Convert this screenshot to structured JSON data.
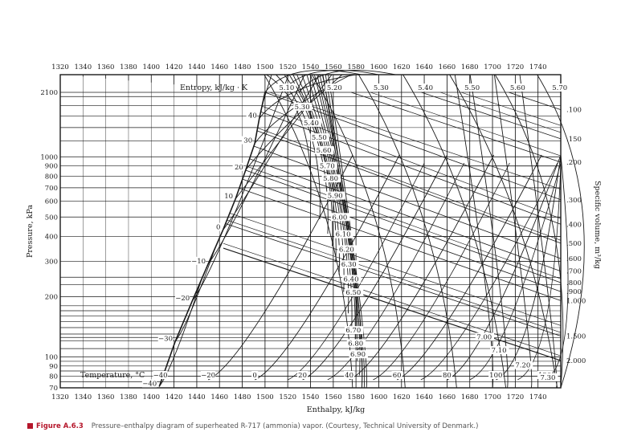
{
  "chart_data": {
    "type": "line",
    "title": "",
    "xlabel": "Enthalpy, kJ/kg",
    "ylabel": "Pressure, kPa",
    "right_axis_label": "Specific volume, m³/kg",
    "entropy_label": "Entropy, kJ/kg · K",
    "temperature_label": "Temperature, °C",
    "scale": {
      "x": "linear",
      "y": "log"
    },
    "xlim": [
      1320,
      1760
    ],
    "ylim": [
      70,
      2100
    ],
    "grid": true,
    "x_ticks": [
      "1320",
      "1340",
      "1360",
      "1380",
      "1400",
      "1420",
      "1440",
      "1460",
      "1480",
      "1500",
      "1520",
      "1540",
      "1560",
      "1580",
      "1600",
      "1620",
      "1640",
      "1660",
      "1680",
      "1700",
      "1720",
      "1740"
    ],
    "y_ticks": [
      {
        "v": 2100,
        "label": "2100"
      },
      {
        "v": 1000,
        "label": "1000"
      },
      {
        "v": 900,
        "label": "900"
      },
      {
        "v": 800,
        "label": "800"
      },
      {
        "v": 700,
        "label": "700"
      },
      {
        "v": 600,
        "label": "600"
      },
      {
        "v": 500,
        "label": "500"
      },
      {
        "v": 400,
        "label": "400"
      },
      {
        "v": 300,
        "label": "300"
      },
      {
        "v": 200,
        "label": "200"
      },
      {
        "v": 100,
        "label": "100"
      },
      {
        "v": 90,
        "label": "90"
      },
      {
        "v": 80,
        "label": "80"
      },
      {
        "v": 70,
        "label": "70"
      }
    ],
    "top_entropy_ticks": [
      {
        "h": 1512,
        "label": "5.10"
      },
      {
        "h": 1554,
        "label": "5.20"
      },
      {
        "h": 1595,
        "label": "5.30"
      },
      {
        "h": 1634,
        "label": "5.40"
      },
      {
        "h": 1675,
        "label": "5.50"
      },
      {
        "h": 1715,
        "label": "5.60"
      },
      {
        "h": 1752,
        "label": "5.70"
      }
    ],
    "bottom_temperature_ticks": [
      {
        "h": 1408,
        "label": "−40"
      },
      {
        "h": 1450,
        "label": "−20"
      },
      {
        "h": 1491,
        "label": "0"
      },
      {
        "h": 1533,
        "label": "20"
      },
      {
        "h": 1574,
        "label": "40"
      },
      {
        "h": 1616,
        "label": "60"
      },
      {
        "h": 1660,
        "label": "80"
      },
      {
        "h": 1703,
        "label": "100"
      },
      {
        "h": 1746,
        "label": "120"
      }
    ],
    "right_volume_ticks": [
      {
        "p": 1720,
        "label": ".100"
      },
      {
        "p": 1230,
        "label": ".150"
      },
      {
        "p": 940,
        "label": ".200"
      },
      {
        "p": 610,
        "label": ".300"
      },
      {
        "p": 460,
        "label": ".400"
      },
      {
        "p": 370,
        "label": ".500"
      },
      {
        "p": 310,
        "label": ".600"
      },
      {
        "p": 268,
        "label": ".700"
      },
      {
        "p": 235,
        "label": ".800"
      },
      {
        "p": 212,
        "label": ".900"
      },
      {
        "p": 191,
        "label": "1.000"
      },
      {
        "p": 127,
        "label": "1.500"
      },
      {
        "p": 96,
        "label": "2.000"
      }
    ],
    "saturation_line": [
      {
        "h": 1407,
        "p": 71
      },
      {
        "h": 1421,
        "p": 119
      },
      {
        "h": 1436,
        "p": 190
      },
      {
        "h": 1450,
        "p": 291
      },
      {
        "h": 1463,
        "p": 430
      },
      {
        "h": 1474,
        "p": 615
      },
      {
        "h": 1483,
        "p": 858
      },
      {
        "h": 1491,
        "p": 1167
      },
      {
        "h": 1495,
        "p": 1555
      },
      {
        "h": 1500,
        "p": 2100
      }
    ],
    "saturation_temperature_labels": [
      {
        "h": 1407,
        "p": 71,
        "label": "−40"
      },
      {
        "h": 1421,
        "p": 119,
        "label": "−30"
      },
      {
        "h": 1436,
        "p": 190,
        "label": "−20"
      },
      {
        "h": 1450,
        "p": 291,
        "label": "−10"
      },
      {
        "h": 1463,
        "p": 430,
        "label": "0"
      },
      {
        "h": 1474,
        "p": 615,
        "label": "10"
      },
      {
        "h": 1483,
        "p": 858,
        "label": "20"
      },
      {
        "h": 1491,
        "p": 1167,
        "label": "30"
      },
      {
        "h": 1495,
        "p": 1555,
        "label": "40"
      }
    ],
    "entropy_curve_labels": [
      {
        "h": 1526,
        "p": 1780,
        "label": "5.30"
      },
      {
        "h": 1534,
        "p": 1480,
        "label": "5.40"
      },
      {
        "h": 1541,
        "p": 1250,
        "label": "5.50"
      },
      {
        "h": 1545,
        "p": 1080,
        "label": "5.60"
      },
      {
        "h": 1548,
        "p": 900,
        "label": "5.70"
      },
      {
        "h": 1551,
        "p": 780,
        "label": "5.80"
      },
      {
        "h": 1555,
        "p": 640,
        "label": "5.90"
      },
      {
        "h": 1559,
        "p": 500,
        "label": "6.00"
      },
      {
        "h": 1562,
        "p": 410,
        "label": "6.10"
      },
      {
        "h": 1565,
        "p": 345,
        "label": "6.20"
      },
      {
        "h": 1567,
        "p": 290,
        "label": "6.30"
      },
      {
        "h": 1569,
        "p": 245,
        "label": "6.40"
      },
      {
        "h": 1571,
        "p": 210,
        "label": "6.50"
      },
      {
        "h": 1571,
        "p": 136,
        "label": "6.70"
      },
      {
        "h": 1573,
        "p": 117,
        "label": "6.80"
      },
      {
        "h": 1575,
        "p": 103,
        "label": "6.90"
      },
      {
        "h": 1686,
        "p": 126,
        "label": "7.00"
      },
      {
        "h": 1699,
        "p": 108,
        "label": "7.10"
      },
      {
        "h": 1720,
        "p": 91,
        "label": "7.20"
      },
      {
        "h": 1742,
        "p": 79,
        "label": "7.30"
      }
    ],
    "extra_pressure_lines": [
      250,
      230,
      180,
      170,
      160,
      150,
      140,
      130,
      125,
      120,
      110,
      95,
      85,
      75,
      1200,
      1400,
      1600,
      1800,
      2000
    ]
  },
  "caption": {
    "figure": "Figure A.6.3",
    "text": "Pressure–enthalpy diagram of superheated R-717 (ammonia) vapor. (Courtesy, Technical University of Denmark.)"
  },
  "colors": {
    "ink": "#1a1a1a",
    "accent": "#b5162b",
    "background": "#ffffff"
  }
}
